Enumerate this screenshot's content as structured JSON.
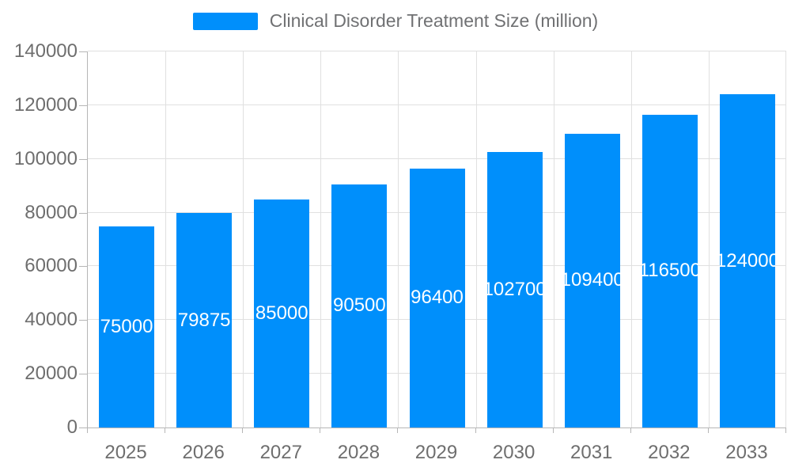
{
  "chart_data": {
    "type": "bar",
    "title": "Clinical Disorder Treatment Size (million)",
    "categories": [
      "2025",
      "2026",
      "2027",
      "2028",
      "2029",
      "2030",
      "2031",
      "2032",
      "2033"
    ],
    "series": [
      {
        "name": "Clinical Disorder Treatment Size (million)",
        "values": [
          75000,
          79875,
          85000,
          90500,
          96400,
          102700,
          109400,
          116500,
          124000
        ]
      }
    ],
    "data_labels": [
      "75000",
      "79875",
      "85000",
      "90500",
      "96400",
      "102700",
      "109400",
      "116500",
      "124000"
    ],
    "xlabel": "",
    "ylabel": "",
    "ylim": [
      0,
      140000
    ],
    "ytick_step": 20000,
    "yticks": [
      0,
      20000,
      40000,
      60000,
      80000,
      100000,
      120000,
      140000
    ],
    "grid": true,
    "legend_position": "top",
    "colors": {
      "bar": "#008FFB",
      "bar_label_text": "#ffffff",
      "grid_line": "#e0e0e0",
      "axis_line": "#b6b6b6",
      "axis_text": "#6E6E6E",
      "legend_text": "#707173"
    }
  }
}
